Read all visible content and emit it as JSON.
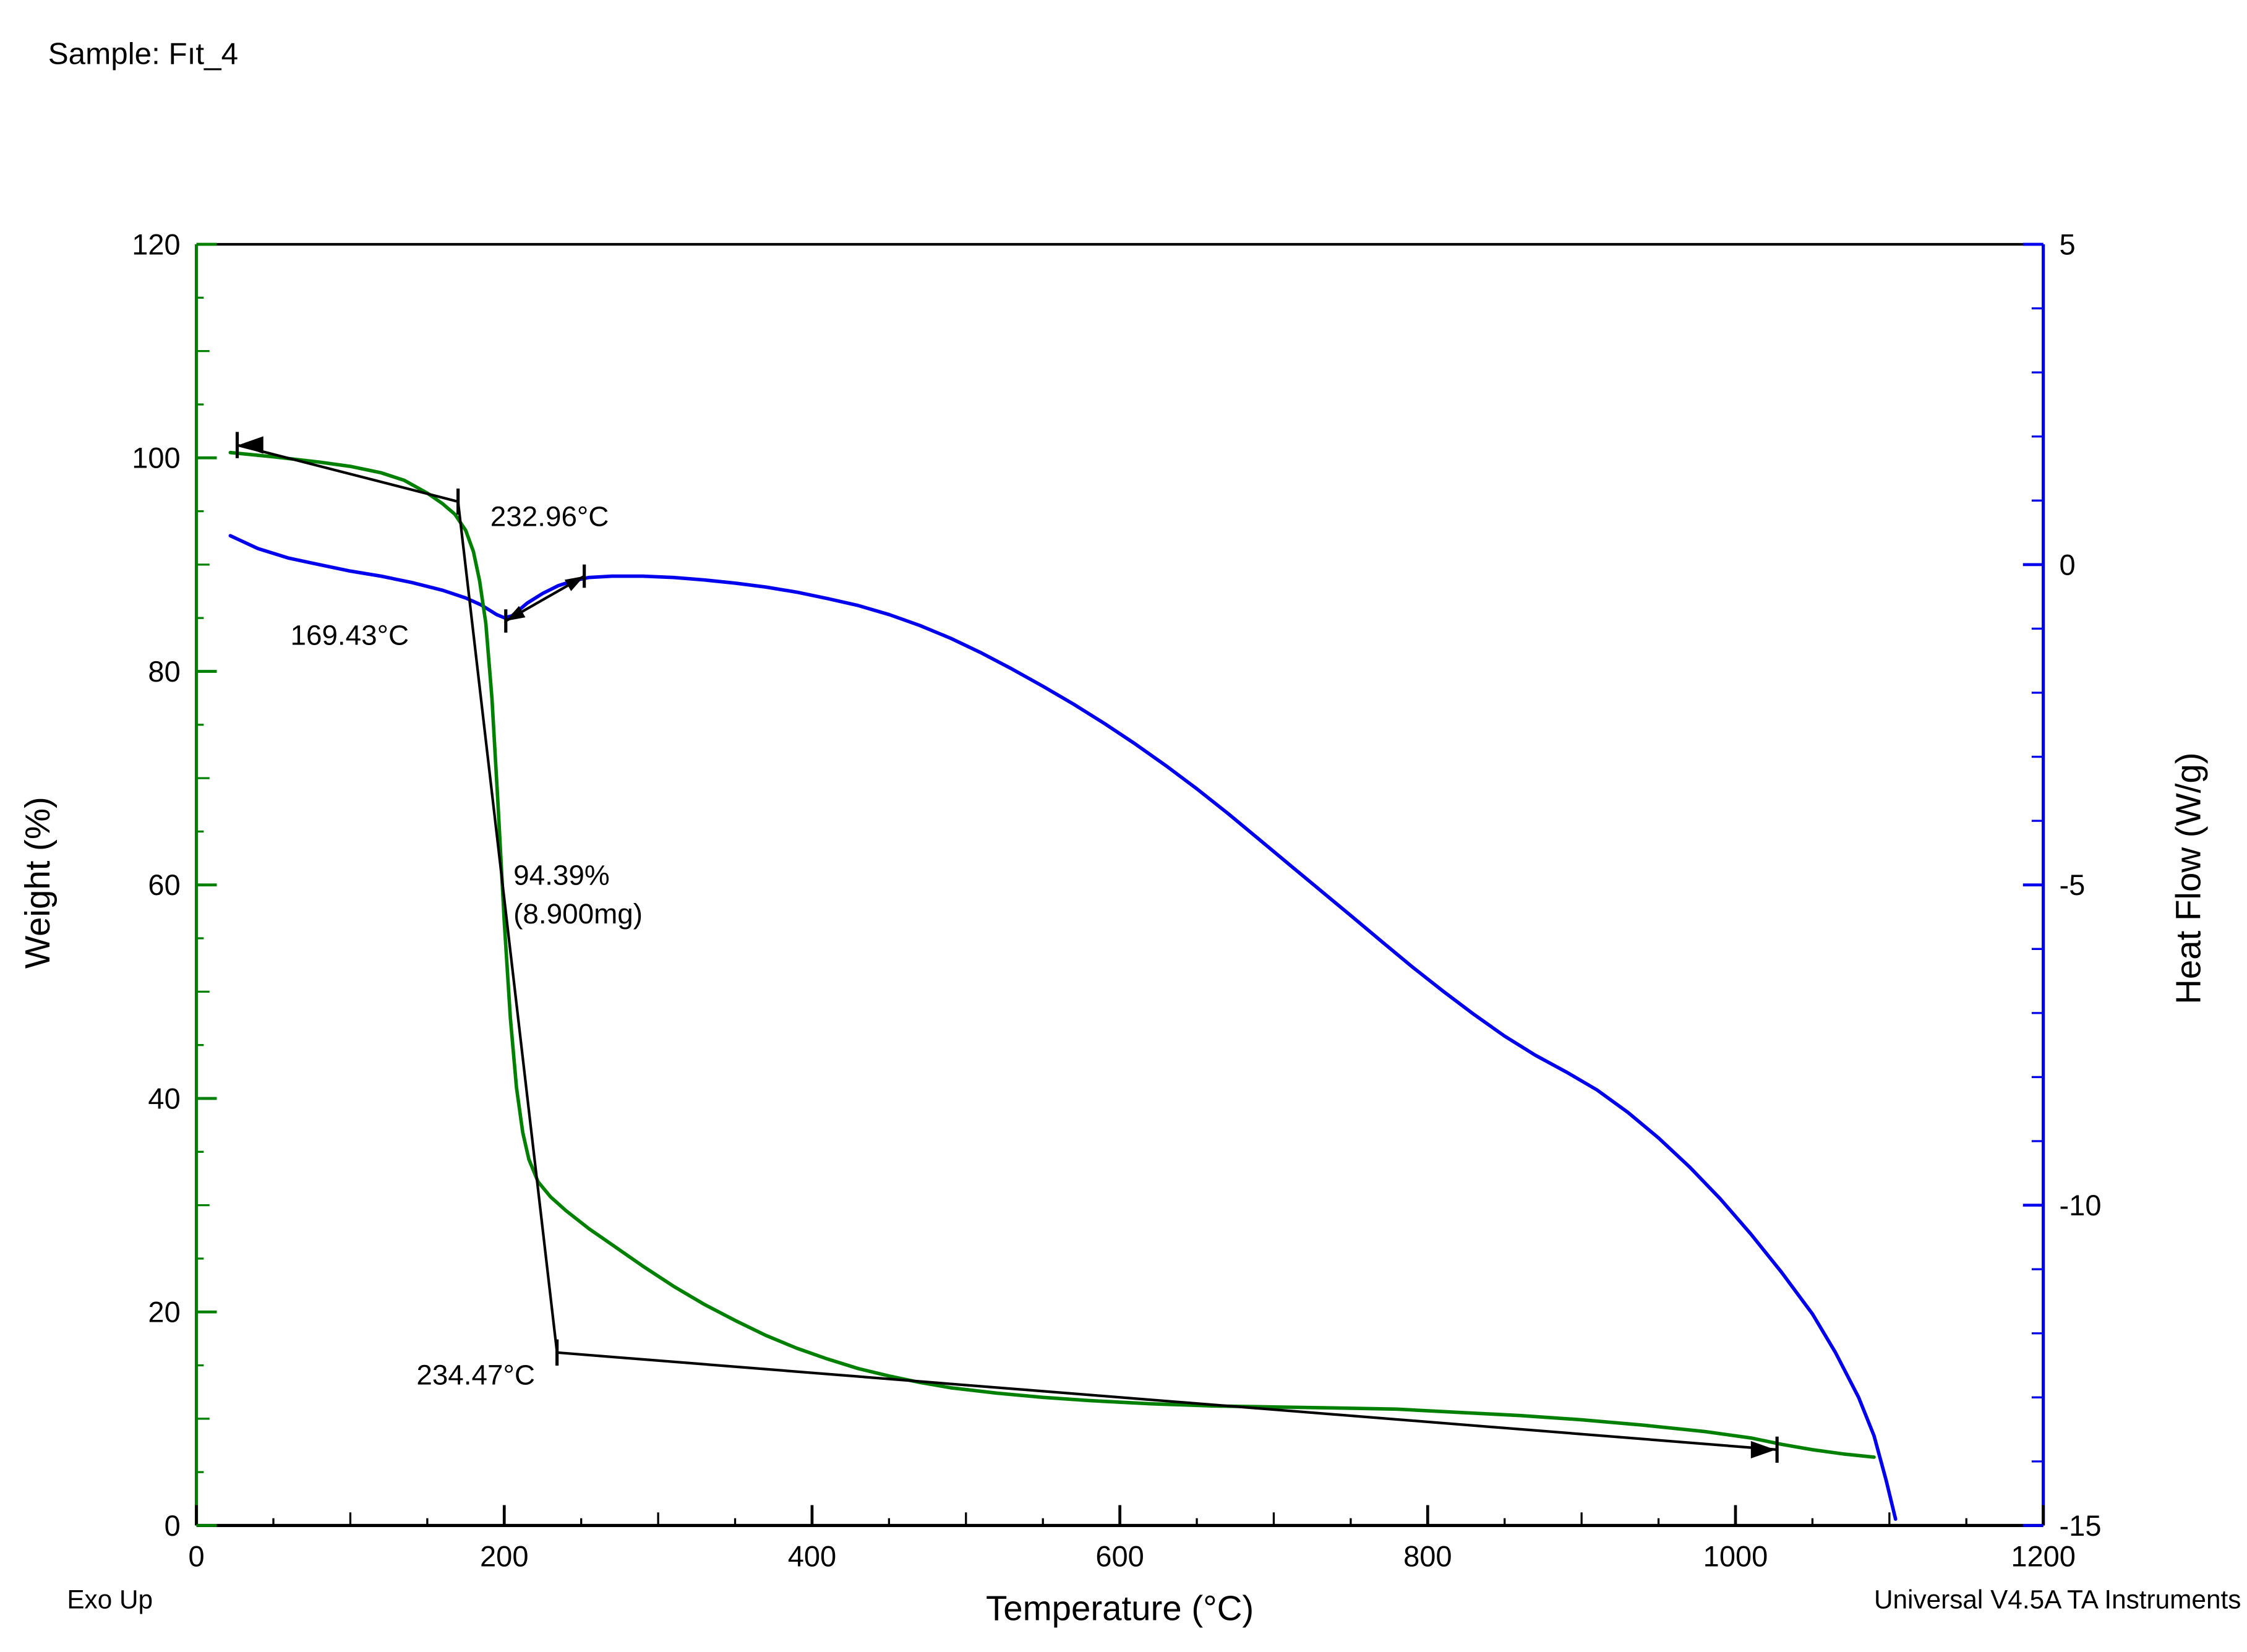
{
  "title": "Sample: Fıt_4",
  "footer": {
    "exo_up": "Exo Up",
    "credit": "Universal V4.5A TA Instruments"
  },
  "colors": {
    "weight": "#008000",
    "heat": "#0000EE",
    "frame": "#000000",
    "annotation": "#000000",
    "background": "#FFFFFF"
  },
  "chart_data": {
    "type": "line",
    "title": "Sample: Fıt_4",
    "xlabel": "Temperature (°C)",
    "ylabel_left": "Weight (%)",
    "ylabel_right": "Heat Flow (W/g)",
    "legend": "none",
    "grid": false,
    "axes": {
      "x": {
        "label": "Temperature (°C)",
        "min": 0,
        "max": 1200,
        "major": 200,
        "mid": 100,
        "minor": 50,
        "ticks": [
          0,
          200,
          400,
          600,
          800,
          1000,
          1200
        ]
      },
      "weight": {
        "label": "Weight (%)",
        "min": 0,
        "max": 120,
        "major": 20,
        "mid": 10,
        "minor": 5,
        "ticks": [
          0,
          20,
          40,
          60,
          80,
          100,
          120
        ]
      },
      "heat": {
        "label": "Heat Flow (W/g)",
        "min": -15,
        "max": 5,
        "major": 5,
        "minor": 1,
        "ticks": [
          5,
          0,
          -5,
          -10,
          -15
        ]
      }
    },
    "series": [
      {
        "name": "Weight (%)",
        "axis": "weight",
        "color": "#008000",
        "points": [
          [
            22,
            100.5
          ],
          [
            50,
            100.1
          ],
          [
            80,
            99.6
          ],
          [
            100,
            99.2
          ],
          [
            120,
            98.6
          ],
          [
            135,
            97.9
          ],
          [
            150,
            96.7
          ],
          [
            160,
            95.7
          ],
          [
            168,
            94.7
          ],
          [
            175,
            93.2
          ],
          [
            180,
            91.2
          ],
          [
            184,
            88.5
          ],
          [
            188,
            84.5
          ],
          [
            192,
            77.5
          ],
          [
            196,
            67.5
          ],
          [
            200,
            56.5
          ],
          [
            204,
            47.5
          ],
          [
            208,
            41.0
          ],
          [
            212,
            36.8
          ],
          [
            216,
            34.3
          ],
          [
            222,
            32.2
          ],
          [
            230,
            30.8
          ],
          [
            240,
            29.5
          ],
          [
            255,
            27.8
          ],
          [
            270,
            26.3
          ],
          [
            290,
            24.3
          ],
          [
            310,
            22.4
          ],
          [
            330,
            20.7
          ],
          [
            350,
            19.2
          ],
          [
            370,
            17.8
          ],
          [
            390,
            16.6
          ],
          [
            410,
            15.6
          ],
          [
            430,
            14.7
          ],
          [
            450,
            14.0
          ],
          [
            470,
            13.4
          ],
          [
            490,
            12.9
          ],
          [
            520,
            12.4
          ],
          [
            550,
            12.0
          ],
          [
            580,
            11.7
          ],
          [
            620,
            11.4
          ],
          [
            660,
            11.2
          ],
          [
            700,
            11.1
          ],
          [
            740,
            11.0
          ],
          [
            780,
            10.9
          ],
          [
            820,
            10.6
          ],
          [
            860,
            10.3
          ],
          [
            900,
            9.9
          ],
          [
            940,
            9.4
          ],
          [
            980,
            8.8
          ],
          [
            1010,
            8.2
          ],
          [
            1030,
            7.6
          ],
          [
            1050,
            7.1
          ],
          [
            1070,
            6.7
          ],
          [
            1090,
            6.4
          ]
        ]
      },
      {
        "name": "Heat Flow (W/g)",
        "axis": "heat",
        "color": "#0000EE",
        "points": [
          [
            22,
            0.45
          ],
          [
            40,
            0.25
          ],
          [
            60,
            0.1
          ],
          [
            80,
            0.0
          ],
          [
            100,
            -0.1
          ],
          [
            120,
            -0.18
          ],
          [
            140,
            -0.28
          ],
          [
            160,
            -0.4
          ],
          [
            175,
            -0.52
          ],
          [
            185,
            -0.63
          ],
          [
            195,
            -0.78
          ],
          [
            200,
            -0.83
          ],
          [
            205,
            -0.8
          ],
          [
            215,
            -0.6
          ],
          [
            225,
            -0.45
          ],
          [
            235,
            -0.33
          ],
          [
            245,
            -0.25
          ],
          [
            255,
            -0.2
          ],
          [
            270,
            -0.18
          ],
          [
            290,
            -0.18
          ],
          [
            310,
            -0.2
          ],
          [
            330,
            -0.24
          ],
          [
            350,
            -0.29
          ],
          [
            370,
            -0.35
          ],
          [
            390,
            -0.43
          ],
          [
            410,
            -0.53
          ],
          [
            430,
            -0.64
          ],
          [
            450,
            -0.78
          ],
          [
            470,
            -0.95
          ],
          [
            490,
            -1.15
          ],
          [
            510,
            -1.38
          ],
          [
            530,
            -1.63
          ],
          [
            550,
            -1.9
          ],
          [
            570,
            -2.18
          ],
          [
            590,
            -2.48
          ],
          [
            610,
            -2.8
          ],
          [
            630,
            -3.14
          ],
          [
            650,
            -3.5
          ],
          [
            670,
            -3.88
          ],
          [
            690,
            -4.28
          ],
          [
            710,
            -4.68
          ],
          [
            730,
            -5.08
          ],
          [
            750,
            -5.48
          ],
          [
            770,
            -5.88
          ],
          [
            790,
            -6.28
          ],
          [
            810,
            -6.66
          ],
          [
            830,
            -7.02
          ],
          [
            850,
            -7.36
          ],
          [
            870,
            -7.66
          ],
          [
            890,
            -7.92
          ],
          [
            910,
            -8.2
          ],
          [
            930,
            -8.55
          ],
          [
            950,
            -8.95
          ],
          [
            970,
            -9.4
          ],
          [
            990,
            -9.9
          ],
          [
            1010,
            -10.45
          ],
          [
            1030,
            -11.05
          ],
          [
            1050,
            -11.7
          ],
          [
            1065,
            -12.3
          ],
          [
            1080,
            -13.0
          ],
          [
            1090,
            -13.6
          ],
          [
            1098,
            -14.3
          ],
          [
            1104,
            -14.9
          ]
        ]
      }
    ],
    "annotations": {
      "labels": [
        {
          "text": "232.96°C",
          "t": 191,
          "w": 93.6
        },
        {
          "text": "169.43°C",
          "t": 61,
          "w": 82.5
        },
        {
          "text": "94.39%",
          "t": 206,
          "w": 60.0
        },
        {
          "text": "(8.900mg)",
          "t": 206,
          "w": 56.4
        },
        {
          "text": "234.47°C",
          "t": 143,
          "w": 13.2
        }
      ],
      "weight_construction": {
        "segments": [
          [
            [
              26.5,
              101.2
            ],
            [
              170,
              95.9
            ]
          ],
          [
            [
              170,
              95.9
            ],
            [
              234.3,
              16.2
            ]
          ],
          [
            [
              234.3,
              16.2
            ],
            [
              1027,
              7.1
            ]
          ]
        ],
        "cursors": [
          [
            26.5,
            101.2
          ],
          [
            170,
            95.9
          ],
          [
            234.3,
            16.2
          ],
          [
            1027,
            7.1
          ]
        ],
        "arrow_left": [
          26.5,
          101.2
        ],
        "arrow_right": [
          1027,
          7.1
        ]
      },
      "heat_construction": {
        "segment": [
          [
            201,
            -0.88
          ],
          [
            252,
            -0.18
          ]
        ],
        "cursors": [
          [
            201,
            -0.88
          ],
          [
            252,
            -0.18
          ]
        ]
      }
    }
  }
}
